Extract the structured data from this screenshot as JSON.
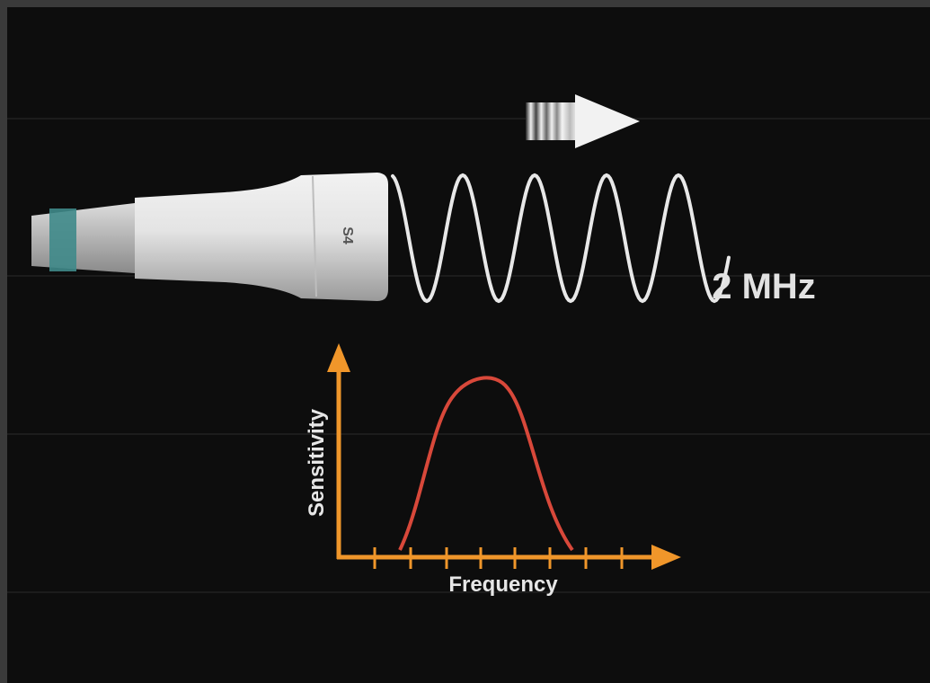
{
  "labels": {
    "probe_model": "S4",
    "frequency_readout": "2 MHz",
    "y_axis": "Sensitivity",
    "x_axis": "Frequency"
  }
}
